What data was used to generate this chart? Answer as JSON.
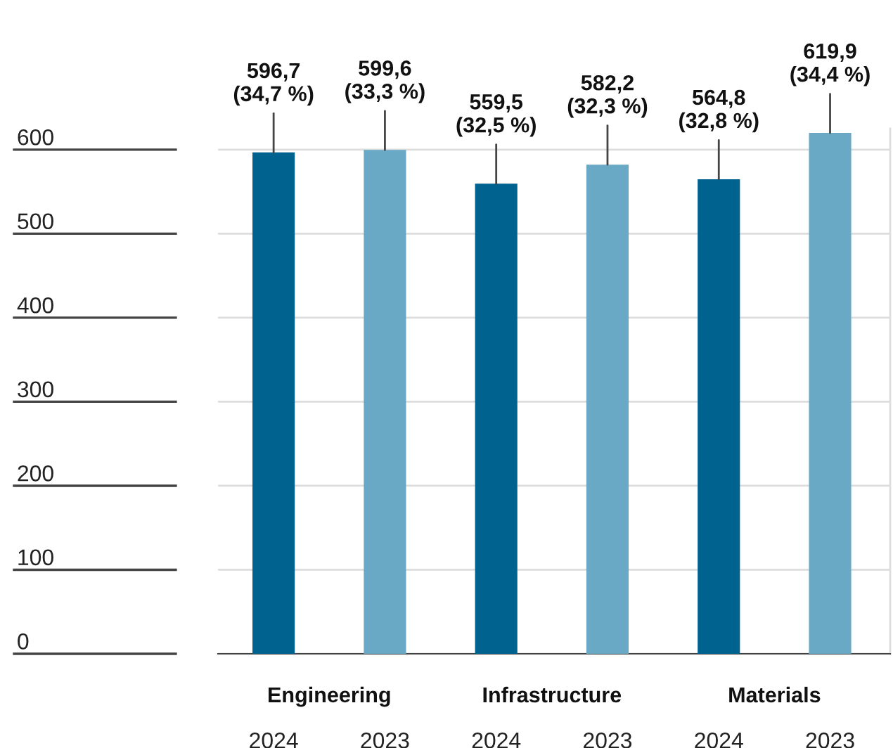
{
  "chart_data": {
    "type": "bar",
    "categories": [
      "2024",
      "2023",
      "2024",
      "2023",
      "2024",
      "2023"
    ],
    "values": [
      596.7,
      599.6,
      559.5,
      582.2,
      564.8,
      619.9
    ],
    "colors": [
      "#00628f",
      "#6aa9c6",
      "#00628f",
      "#6aa9c6",
      "#00628f",
      "#6aa9c6"
    ],
    "value_labels": [
      "596,7\n(34,7 %)",
      "599,6\n(33,3 %)",
      "559,5\n(32,5 %)",
      "582,2\n(32,3 %)",
      "564,8\n(32,8 %)",
      "619,9\n(34,4 %)"
    ],
    "annotations": [
      "Engineering",
      "Infrastructure",
      "Materials"
    ],
    "ylim": [
      0,
      625
    ],
    "yticks": [
      0,
      100,
      200,
      300,
      400,
      500,
      600
    ],
    "grid": "y",
    "legend": false
  }
}
